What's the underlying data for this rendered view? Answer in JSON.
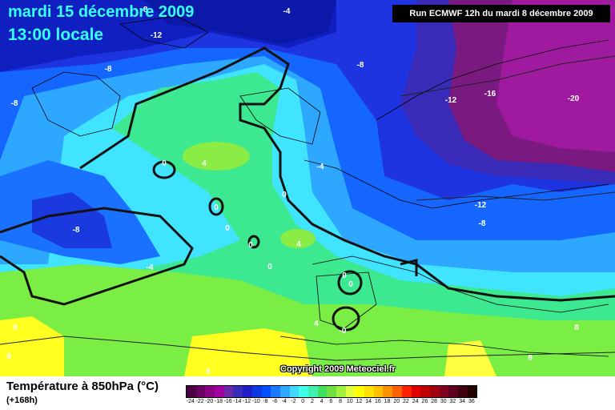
{
  "header": {
    "date": "mardi 15 décembre 2009",
    "time": "13:00 locale",
    "run": "Run ECMWF 12h du mardi 8 décembre 2009"
  },
  "footer": {
    "title": "Température à 850hPa (°C)",
    "lead": "(+168h)",
    "copyright": "Copyright 2009 Meteociel.fr"
  },
  "contour_labels": [
    "-4",
    "-12",
    "-8",
    "-8",
    "-8",
    "-8",
    "-12",
    "-16",
    "-20",
    "-4",
    "-12",
    "-8",
    "-8",
    "-4",
    "0",
    "4",
    "0",
    "0",
    "0",
    "0",
    "4",
    "0",
    "0",
    "0",
    "8",
    "8",
    "8",
    "8",
    "4",
    "-0",
    "8"
  ],
  "legend": {
    "ticks": [
      "-24",
      "-22",
      "-20",
      "-18",
      "-16",
      "-14",
      "-12",
      "-10",
      "-8",
      "-6",
      "-4",
      "-2",
      "0",
      "2",
      "4",
      "6",
      "8",
      "10",
      "12",
      "14",
      "16",
      "18",
      "20",
      "22",
      "24",
      "26",
      "28",
      "30",
      "32",
      "34",
      "36"
    ],
    "colors": [
      "#4a0040",
      "#6a0060",
      "#8a0080",
      "#a000a0",
      "#6a2aa8",
      "#3a2ab8",
      "#1e1ec8",
      "#0a3ae0",
      "#0050ff",
      "#1a7aff",
      "#30a8ff",
      "#40d8ff",
      "#40ffe8",
      "#40f0b0",
      "#40e060",
      "#70e040",
      "#a0f040",
      "#e0ff40",
      "#ffff00",
      "#ffe000",
      "#ffc000",
      "#ff9000",
      "#ff6000",
      "#ff2000",
      "#e00000",
      "#c00000",
      "#a00010",
      "#800020",
      "#600020",
      "#400010",
      "#200000"
    ]
  },
  "colors": {
    "deep_blue": "#1a2ad8",
    "blue": "#1560ff",
    "light_blue": "#30b0ff",
    "cyan": "#40e0ff",
    "green": "#40e880",
    "light_green": "#80f040",
    "yellow": "#ffff20",
    "purple": "#7a1a80"
  }
}
